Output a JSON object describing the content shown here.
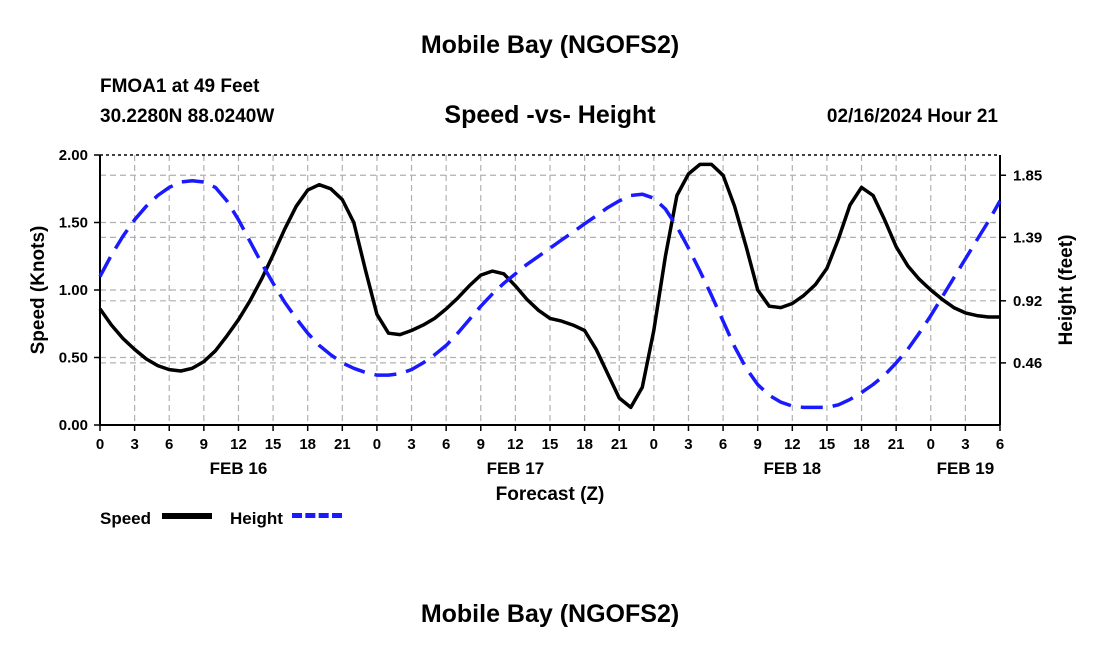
{
  "page": {
    "title": "Mobile Bay (NGOFS2)",
    "footer_title": "Mobile Bay (NGOFS2)",
    "station_name": "FMOA1 at 49 Feet",
    "station_coords": "30.2280N  88.0240W",
    "subtitle": "Speed -vs- Height",
    "timestamp": "02/16/2024 Hour 21"
  },
  "legend": {
    "speed_label": "Speed",
    "height_label": "Height"
  },
  "colors": {
    "speed": "#000000",
    "height": "#1a1aff",
    "grid": "#b0b0b0"
  },
  "chart_data": {
    "type": "line",
    "title": "Speed -vs- Height",
    "xlabel": "Forecast (Z)",
    "ylabel": "Speed (Knots)",
    "y2label": "Height (feet)",
    "x_unit": "hours from 00Z FEB 16",
    "xlim": [
      0,
      78
    ],
    "ylim": [
      0,
      2
    ],
    "y2lim": [
      0,
      2.0
    ],
    "x_ticks": [
      0,
      3,
      6,
      9,
      12,
      15,
      18,
      21,
      24,
      27,
      30,
      33,
      36,
      39,
      42,
      45,
      48,
      51,
      54,
      57,
      60,
      63,
      66,
      69,
      72,
      75,
      78
    ],
    "x_tick_labels": [
      "0",
      "3",
      "6",
      "9",
      "12",
      "15",
      "18",
      "21",
      "0",
      "3",
      "6",
      "9",
      "12",
      "15",
      "18",
      "21",
      "0",
      "3",
      "6",
      "9",
      "12",
      "15",
      "18",
      "21",
      "0",
      "3",
      "6"
    ],
    "date_labels": [
      {
        "x": 12,
        "label": "FEB 16"
      },
      {
        "x": 36,
        "label": "FEB 17"
      },
      {
        "x": 60,
        "label": "FEB 18"
      },
      {
        "x": 75,
        "label": "FEB 19"
      }
    ],
    "y_ticks": [
      0,
      0.5,
      1,
      1.5,
      2
    ],
    "y_tick_labels": [
      "0.00",
      "0.50",
      "1.00",
      "1.50",
      "2.00"
    ],
    "y2_ticks": [
      0.46,
      0.92,
      1.39,
      1.85
    ],
    "y2_tick_labels": [
      "0.46",
      "0.92",
      "1.39",
      "1.85"
    ],
    "grid": true,
    "legend_position": "bottom-left",
    "series": [
      {
        "name": "Speed",
        "axis": "left",
        "style": "solid",
        "x": [
          0,
          1,
          2,
          3,
          4,
          5,
          6,
          7,
          8,
          9,
          10,
          11,
          12,
          13,
          14,
          15,
          16,
          17,
          18,
          19,
          20,
          21,
          22,
          23,
          24,
          25,
          26,
          27,
          28,
          29,
          30,
          31,
          32,
          33,
          34,
          35,
          36,
          37,
          38,
          39,
          40,
          41,
          42,
          43,
          44,
          45,
          46,
          47,
          48,
          49,
          50,
          51,
          52,
          53,
          54,
          55,
          56,
          57,
          58,
          59,
          60,
          61,
          62,
          63,
          64,
          65,
          66,
          67,
          68,
          69,
          70,
          71,
          72,
          73,
          74,
          75,
          76,
          77,
          78
        ],
        "values": [
          0.86,
          0.74,
          0.64,
          0.56,
          0.49,
          0.44,
          0.41,
          0.4,
          0.42,
          0.47,
          0.55,
          0.66,
          0.78,
          0.92,
          1.08,
          1.26,
          1.45,
          1.62,
          1.74,
          1.78,
          1.75,
          1.67,
          1.5,
          1.15,
          0.82,
          0.68,
          0.67,
          0.7,
          0.74,
          0.79,
          0.86,
          0.94,
          1.03,
          1.11,
          1.14,
          1.12,
          1.03,
          0.93,
          0.85,
          0.79,
          0.77,
          0.74,
          0.7,
          0.56,
          0.38,
          0.2,
          0.13,
          0.28,
          0.7,
          1.25,
          1.7,
          1.86,
          1.93,
          1.93,
          1.85,
          1.62,
          1.32,
          1.0,
          0.88,
          0.87,
          0.9,
          0.96,
          1.04,
          1.16,
          1.38,
          1.63,
          1.76,
          1.7,
          1.52,
          1.32,
          1.18,
          1.08,
          1.0,
          0.93,
          0.87,
          0.83,
          0.81,
          0.8,
          0.8
        ]
      },
      {
        "name": "Height",
        "axis": "right",
        "style": "dashed",
        "x": [
          0,
          1,
          2,
          3,
          4,
          5,
          6,
          7,
          8,
          9,
          10,
          11,
          12,
          13,
          14,
          15,
          16,
          17,
          18,
          19,
          20,
          21,
          22,
          23,
          24,
          25,
          26,
          27,
          28,
          29,
          30,
          31,
          32,
          33,
          34,
          35,
          36,
          37,
          38,
          39,
          40,
          41,
          42,
          43,
          44,
          45,
          46,
          47,
          48,
          49,
          50,
          51,
          52,
          53,
          54,
          55,
          56,
          57,
          58,
          59,
          60,
          61,
          62,
          63,
          64,
          65,
          66,
          67,
          68,
          69,
          70,
          71,
          72,
          73,
          74,
          75,
          76,
          77,
          78
        ],
        "values": [
          1.1,
          1.26,
          1.4,
          1.52,
          1.62,
          1.7,
          1.76,
          1.8,
          1.81,
          1.8,
          1.76,
          1.66,
          1.52,
          1.36,
          1.2,
          1.05,
          0.91,
          0.79,
          0.68,
          0.59,
          0.52,
          0.46,
          0.42,
          0.39,
          0.37,
          0.37,
          0.38,
          0.41,
          0.46,
          0.52,
          0.59,
          0.68,
          0.78,
          0.88,
          0.97,
          1.05,
          1.12,
          1.19,
          1.25,
          1.31,
          1.37,
          1.43,
          1.49,
          1.55,
          1.61,
          1.66,
          1.7,
          1.71,
          1.68,
          1.6,
          1.47,
          1.31,
          1.14,
          0.96,
          0.77,
          0.58,
          0.42,
          0.3,
          0.22,
          0.17,
          0.14,
          0.13,
          0.13,
          0.13,
          0.15,
          0.19,
          0.24,
          0.3,
          0.37,
          0.46,
          0.56,
          0.68,
          0.81,
          0.95,
          1.09,
          1.23,
          1.37,
          1.51,
          1.66
        ]
      }
    ]
  }
}
